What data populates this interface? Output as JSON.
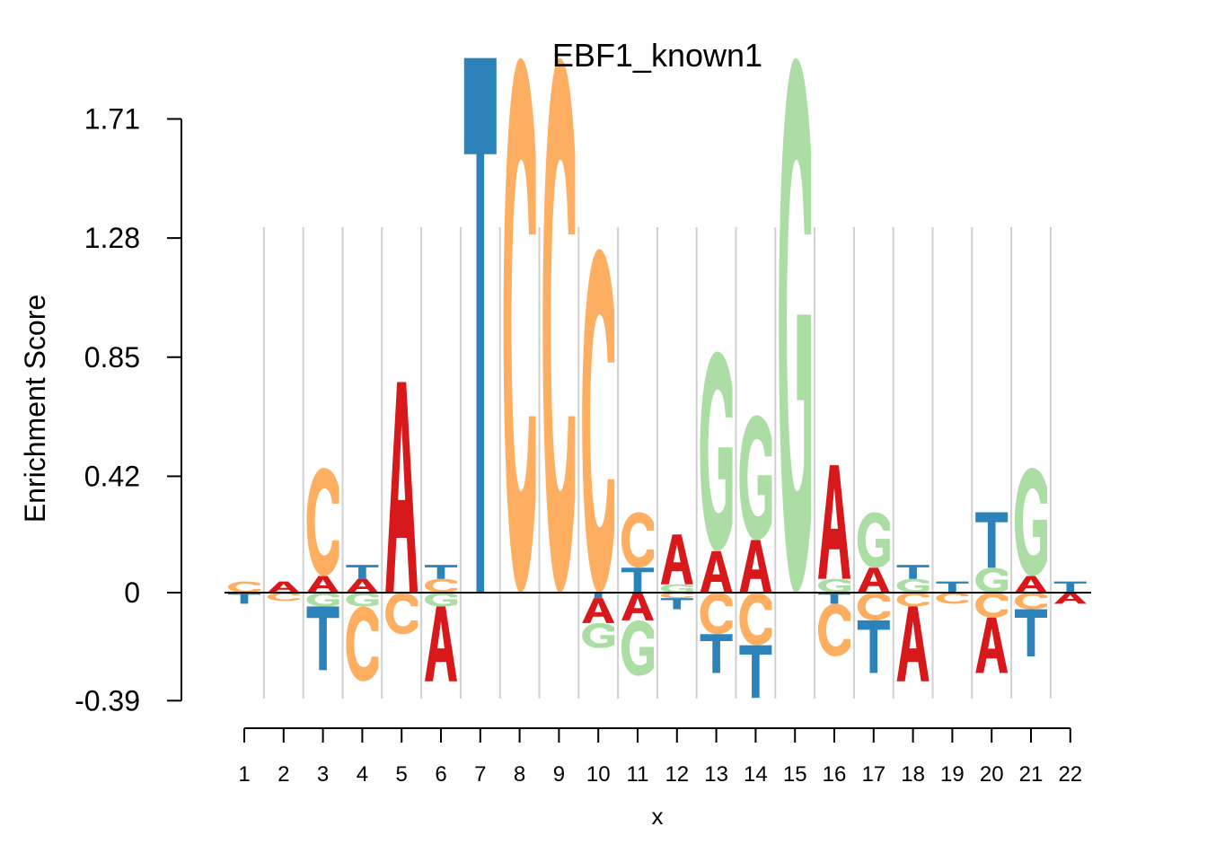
{
  "chart_data": {
    "type": "logo",
    "title": "EBF1_known1",
    "xlabel": "x",
    "ylabel": "Enrichment Score",
    "ylim": [
      -0.39,
      1.71
    ],
    "yticks": [
      "1.71",
      "1.28",
      "0.85",
      "0.42",
      "0",
      "-0.39"
    ],
    "x": [
      "1",
      "2",
      "3",
      "4",
      "5",
      "6",
      "7",
      "8",
      "9",
      "10",
      "11",
      "12",
      "13",
      "14",
      "15",
      "16",
      "17",
      "18",
      "19",
      "20",
      "21",
      "22"
    ],
    "grid": "vertical",
    "colors": {
      "A": "#d7191c",
      "C": "#fdae61",
      "G": "#abdda4",
      "T": "#2b83ba"
    },
    "positions": [
      {
        "pos": 1,
        "above": [
          {
            "letter": "C",
            "score": 0.04
          }
        ],
        "below": [
          {
            "letter": "T",
            "score": 0.04
          }
        ]
      },
      {
        "pos": 2,
        "above": [
          {
            "letter": "A",
            "score": 0.04
          }
        ],
        "below": [
          {
            "letter": "C",
            "score": 0.03
          }
        ]
      },
      {
        "pos": 3,
        "above": [
          {
            "letter": "A",
            "score": 0.06
          },
          {
            "letter": "C",
            "score": 0.39
          }
        ],
        "below": [
          {
            "letter": "G",
            "score": 0.05
          },
          {
            "letter": "T",
            "score": 0.23
          }
        ]
      },
      {
        "pos": 4,
        "above": [
          {
            "letter": "A",
            "score": 0.05
          },
          {
            "letter": "T",
            "score": 0.05
          }
        ],
        "below": [
          {
            "letter": "G",
            "score": 0.05
          },
          {
            "letter": "C",
            "score": 0.27
          }
        ]
      },
      {
        "pos": 5,
        "above": [
          {
            "letter": "A",
            "score": 0.76
          }
        ],
        "below": [
          {
            "letter": "C",
            "score": 0.15
          }
        ]
      },
      {
        "pos": 6,
        "above": [
          {
            "letter": "C",
            "score": 0.05
          },
          {
            "letter": "T",
            "score": 0.05
          }
        ],
        "below": [
          {
            "letter": "G",
            "score": 0.05
          },
          {
            "letter": "A",
            "score": 0.27
          }
        ]
      },
      {
        "pos": 7,
        "above": [
          {
            "letter": "T",
            "score": 1.93
          }
        ],
        "below": []
      },
      {
        "pos": 8,
        "above": [
          {
            "letter": "C",
            "score": 1.93
          }
        ],
        "below": []
      },
      {
        "pos": 9,
        "above": [
          {
            "letter": "C",
            "score": 1.93
          }
        ],
        "below": []
      },
      {
        "pos": 10,
        "above": [
          {
            "letter": "C",
            "score": 1.24
          }
        ],
        "below": [
          {
            "letter": "T",
            "score": 0.02
          },
          {
            "letter": "A",
            "score": 0.09
          },
          {
            "letter": "G",
            "score": 0.09
          }
        ]
      },
      {
        "pos": 11,
        "above": [
          {
            "letter": "T",
            "score": 0.09
          },
          {
            "letter": "C",
            "score": 0.2
          }
        ],
        "below": [
          {
            "letter": "A",
            "score": 0.1
          },
          {
            "letter": "G",
            "score": 0.2
          }
        ]
      },
      {
        "pos": 12,
        "above": [
          {
            "letter": "G",
            "score": 0.03
          },
          {
            "letter": "A",
            "score": 0.18
          }
        ],
        "below": [
          {
            "letter": "C",
            "score": 0.02
          },
          {
            "letter": "T",
            "score": 0.04
          }
        ]
      },
      {
        "pos": 13,
        "above": [
          {
            "letter": "A",
            "score": 0.15
          },
          {
            "letter": "G",
            "score": 0.72
          }
        ],
        "below": [
          {
            "letter": "C",
            "score": 0.15
          },
          {
            "letter": "T",
            "score": 0.14
          }
        ]
      },
      {
        "pos": 14,
        "above": [
          {
            "letter": "A",
            "score": 0.19
          },
          {
            "letter": "G",
            "score": 0.45
          }
        ],
        "below": [
          {
            "letter": "C",
            "score": 0.19
          },
          {
            "letter": "T",
            "score": 0.19
          }
        ]
      },
      {
        "pos": 15,
        "above": [
          {
            "letter": "G",
            "score": 1.93
          }
        ],
        "below": []
      },
      {
        "pos": 16,
        "above": [
          {
            "letter": "G",
            "score": 0.05
          },
          {
            "letter": "A",
            "score": 0.41
          }
        ],
        "below": [
          {
            "letter": "T",
            "score": 0.04
          },
          {
            "letter": "C",
            "score": 0.19
          }
        ]
      },
      {
        "pos": 17,
        "above": [
          {
            "letter": "A",
            "score": 0.09
          },
          {
            "letter": "G",
            "score": 0.2
          }
        ],
        "below": [
          {
            "letter": "C",
            "score": 0.1
          },
          {
            "letter": "T",
            "score": 0.19
          }
        ]
      },
      {
        "pos": 18,
        "above": [
          {
            "letter": "G",
            "score": 0.05
          },
          {
            "letter": "T",
            "score": 0.05
          }
        ],
        "below": [
          {
            "letter": "C",
            "score": 0.05
          },
          {
            "letter": "A",
            "score": 0.27
          }
        ]
      },
      {
        "pos": 19,
        "above": [
          {
            "letter": "T",
            "score": 0.04
          }
        ],
        "below": [
          {
            "letter": "C",
            "score": 0.04
          }
        ]
      },
      {
        "pos": 20,
        "above": [
          {
            "letter": "G",
            "score": 0.09
          },
          {
            "letter": "T",
            "score": 0.2
          }
        ],
        "below": [
          {
            "letter": "C",
            "score": 0.09
          },
          {
            "letter": "A",
            "score": 0.2
          }
        ]
      },
      {
        "pos": 21,
        "above": [
          {
            "letter": "A",
            "score": 0.06
          },
          {
            "letter": "G",
            "score": 0.39
          }
        ],
        "below": [
          {
            "letter": "C",
            "score": 0.06
          },
          {
            "letter": "T",
            "score": 0.17
          }
        ]
      },
      {
        "pos": 22,
        "above": [
          {
            "letter": "T",
            "score": 0.04
          }
        ],
        "below": [
          {
            "letter": "A",
            "score": 0.04
          }
        ]
      }
    ]
  }
}
